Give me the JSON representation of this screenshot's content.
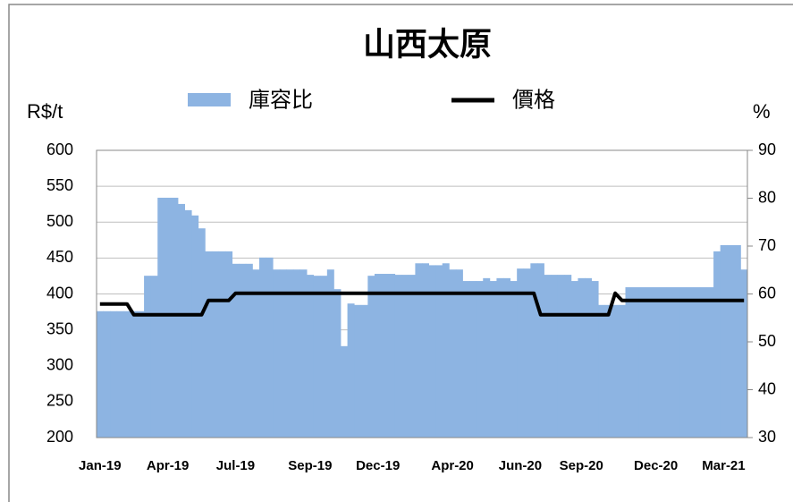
{
  "chart_data": {
    "type": "bar_line",
    "title": "山西太原",
    "y_label": "R$/t",
    "y2_label": "%",
    "categories": [
      "Jan-19",
      null,
      null,
      null,
      null,
      null,
      null,
      null,
      null,
      null,
      "Apr-19",
      null,
      null,
      null,
      null,
      null,
      null,
      null,
      null,
      null,
      "Jul-19",
      null,
      null,
      null,
      null,
      null,
      null,
      null,
      null,
      null,
      null,
      "Sep-19",
      null,
      null,
      null,
      null,
      null,
      null,
      null,
      null,
      null,
      "Dec-19",
      null,
      null,
      null,
      null,
      null,
      null,
      null,
      null,
      null,
      null,
      "Apr-20",
      null,
      null,
      null,
      null,
      null,
      null,
      null,
      null,
      null,
      "Jun-20",
      null,
      null,
      null,
      null,
      null,
      null,
      null,
      null,
      "Sep-20",
      null,
      null,
      null,
      null,
      null,
      null,
      null,
      null,
      null,
      null,
      "Dec-20",
      null,
      null,
      null,
      null,
      null,
      null,
      null,
      null,
      null,
      "Mar-21",
      null,
      null,
      null
    ],
    "series": [
      {
        "name": "庫容比",
        "kind": "bar",
        "axis": "y2",
        "color": "#8db4e2",
        "values": [
          56.4,
          56.4,
          56.4,
          56.4,
          56.4,
          56.4,
          56.4,
          63.8,
          63.8,
          80.1,
          80.1,
          80.1,
          78.8,
          77.5,
          76.4,
          73.7,
          68.9,
          68.9,
          68.9,
          68.9,
          66.3,
          66.3,
          66.3,
          65.1,
          67.6,
          67.6,
          65.1,
          65.1,
          65.1,
          65.1,
          65.1,
          64,
          63.8,
          63.8,
          65.1,
          61,
          49.1,
          58,
          57.7,
          57.7,
          63.8,
          64.2,
          64.2,
          64.2,
          64,
          64,
          64,
          66.4,
          66.4,
          66,
          66,
          66.4,
          65.1,
          65.1,
          62.7,
          62.7,
          62.7,
          63.3,
          62.7,
          63.3,
          63.3,
          62.7,
          65.3,
          65.3,
          66.4,
          66.4,
          64,
          64,
          64,
          64,
          62.7,
          63.3,
          63.3,
          62.7,
          57.7,
          57.7,
          57.7,
          57.7,
          61.4,
          61.4,
          61.4,
          61.4,
          61.4,
          61.4,
          61.4,
          61.4,
          61.4,
          61.4,
          61.4,
          61.4,
          61.4,
          68.9,
          70.2,
          70.2,
          70.2,
          65.1
        ]
      },
      {
        "name": "價格",
        "kind": "line",
        "color": "#000000",
        "values": [
          386,
          386,
          386,
          386,
          386,
          371,
          371,
          371,
          371,
          371,
          371,
          371,
          371,
          371,
          371,
          371,
          391,
          391,
          391,
          391,
          401,
          401,
          401,
          401,
          401,
          401,
          401,
          401,
          401,
          401,
          401,
          401,
          401,
          401,
          401,
          401,
          401,
          401,
          401,
          401,
          401,
          401,
          401,
          401,
          401,
          401,
          401,
          401,
          401,
          401,
          401,
          401,
          401,
          401,
          401,
          401,
          401,
          401,
          401,
          401,
          401,
          401,
          401,
          401,
          401,
          371,
          371,
          371,
          371,
          371,
          371,
          371,
          371,
          371,
          371,
          371,
          401,
          391,
          391,
          391,
          391,
          391,
          391,
          391,
          391,
          391,
          391,
          391,
          391,
          391,
          391,
          391,
          391,
          391,
          391,
          391
        ]
      }
    ],
    "ylim": [
      200,
      600
    ],
    "yticks": [
      200,
      250,
      300,
      350,
      400,
      450,
      500,
      550,
      600
    ],
    "y2lim": [
      30,
      90
    ],
    "y2ticks": [
      30,
      40,
      50,
      60,
      70,
      80,
      90
    ],
    "grid": true
  }
}
